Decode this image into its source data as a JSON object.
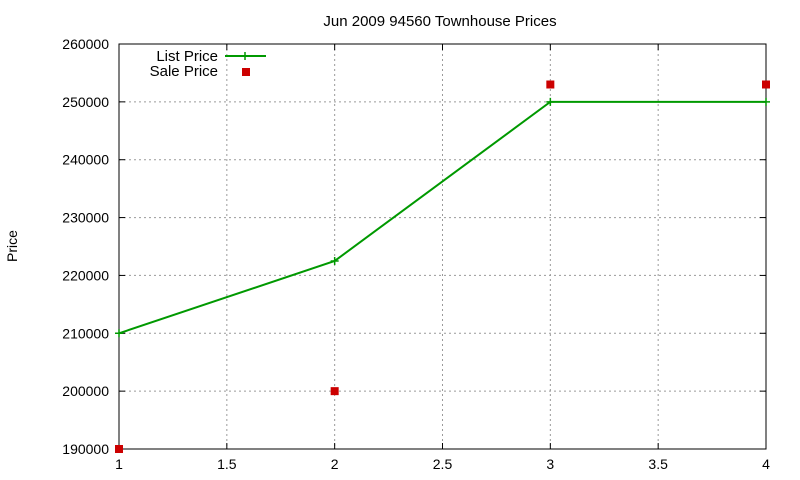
{
  "chart_data": {
    "type": "line",
    "title": "Jun 2009 94560 Townhouse Prices",
    "xlabel": "",
    "ylabel": "Price",
    "xlim": [
      1,
      4
    ],
    "ylim": [
      190000,
      260000
    ],
    "x_ticks": [
      1,
      1.5,
      2,
      2.5,
      3,
      3.5,
      4
    ],
    "x_tick_labels": [
      "1",
      "1.5",
      "2",
      "2.5",
      "3",
      "3.5",
      "4"
    ],
    "y_ticks": [
      190000,
      200000,
      210000,
      220000,
      230000,
      240000,
      250000,
      260000
    ],
    "y_tick_labels": [
      "190000",
      "200000",
      "210000",
      "220000",
      "230000",
      "240000",
      "250000",
      "260000"
    ],
    "grid": true,
    "legend_position": "top-left",
    "series": [
      {
        "name": "List Price",
        "style": "line-with-plus-markers",
        "color": "#009900",
        "x": [
          1,
          2,
          3,
          4
        ],
        "values": [
          210000,
          222500,
          250000,
          250000
        ]
      },
      {
        "name": "Sale Price",
        "style": "square-markers",
        "color": "#cc0000",
        "x": [
          1,
          2,
          3,
          4
        ],
        "values": [
          190000,
          200000,
          253000,
          253000
        ]
      }
    ]
  }
}
